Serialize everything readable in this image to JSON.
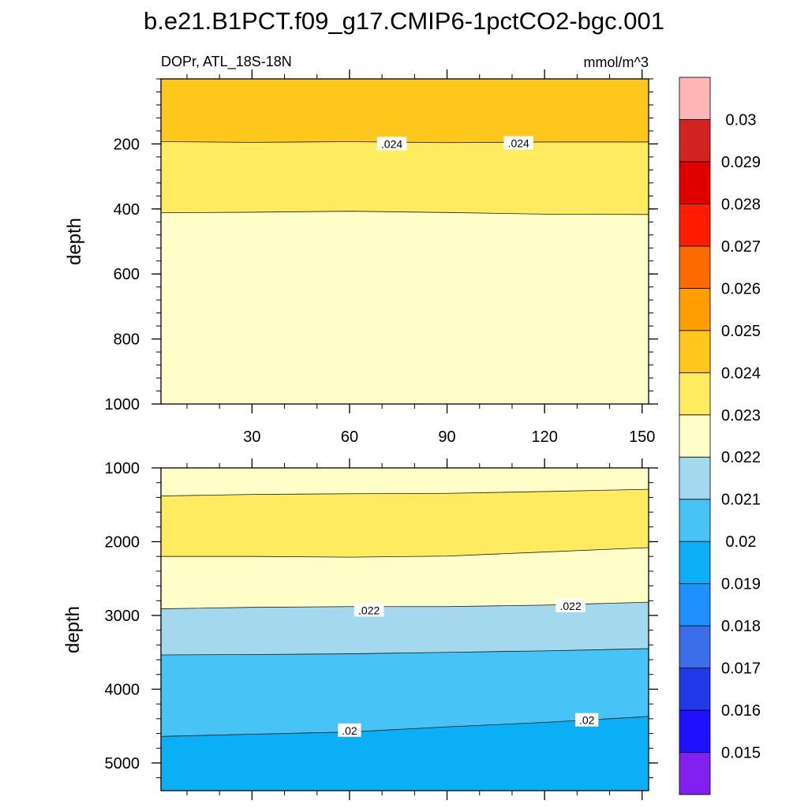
{
  "chart_data": {
    "type": "contour",
    "title": "b.e21.B1PCT.f09_g17.CMIP6-1pctCO2-bgc.001",
    "left_subtitle": "DOPr, ATL_18S-18N",
    "right_subtitle": "mmol/m^3",
    "xlabel": "",
    "ylabel": "depth",
    "x_ticks": [
      30,
      60,
      90,
      120,
      150
    ],
    "xlim": [
      2,
      152
    ],
    "levels": [
      0.015,
      0.016,
      0.017,
      0.018,
      0.019,
      0.02,
      0.021,
      0.022,
      0.023,
      0.024,
      0.025,
      0.026,
      0.027,
      0.028,
      0.029,
      0.03
    ],
    "level_labels": [
      "0.015",
      "0.016",
      "0.017",
      "0.018",
      "0.019",
      "0.02",
      "0.021",
      "0.022",
      "0.023",
      "0.024",
      "0.025",
      "0.026",
      "0.027",
      "0.028",
      "0.029",
      "0.03"
    ],
    "colors": [
      "#8220f0",
      "#1f10ff",
      "#2138e8",
      "#3c6de8",
      "#1e90ff",
      "#0aaff5",
      "#48c3f5",
      "#a3d8ef",
      "#fffdc8",
      "#ffeb60",
      "#ffc71c",
      "#ff9e00",
      "#ff6a00",
      "#ff1c00",
      "#e10000",
      "#d42323",
      "#ffb5b5"
    ],
    "panels": [
      {
        "name": "upper",
        "ylim": [
          0,
          1000
        ],
        "y_ticks": [
          200,
          400,
          600,
          800,
          1000
        ],
        "regions": [
          {
            "color_index": 10,
            "from": "top",
            "to": 0
          },
          {
            "color_index": 9,
            "from": 0,
            "to": 1
          },
          {
            "color_index": 8,
            "from": 1,
            "to": "bottom"
          }
        ],
        "contours": [
          {
            "level": 0.024,
            "x": [
              2,
              30,
              60,
              90,
              120,
              152
            ],
            "depth": [
              193,
              195,
              193,
              196,
              194,
              194
            ]
          },
          {
            "level": 0.023,
            "x": [
              2,
              30,
              60,
              90,
              120,
              152
            ],
            "depth": [
              412,
              410,
              407,
              411,
              416,
              417
            ]
          }
        ],
        "contour_labels": [
          {
            "text": ".024",
            "x": 73,
            "depth": 200
          },
          {
            "text": ".024",
            "x": 112,
            "depth": 198
          }
        ]
      },
      {
        "name": "lower",
        "ylim": [
          1000,
          5375
        ],
        "y_ticks": [
          1000,
          2000,
          3000,
          4000,
          5000
        ],
        "regions": [
          {
            "color_index": 8,
            "from": "top",
            "to": 0
          },
          {
            "color_index": 9,
            "from": 0,
            "to": 1
          },
          {
            "color_index": 8,
            "from": 1,
            "to": 2
          },
          {
            "color_index": 7,
            "from": 2,
            "to": 3
          },
          {
            "color_index": 6,
            "from": 3,
            "to": 4
          },
          {
            "color_index": 5,
            "from": 4,
            "to": "bottom"
          }
        ],
        "contours": [
          {
            "level": 0.023,
            "x": [
              2,
              30,
              60,
              90,
              120,
              152
            ],
            "depth": [
              1380,
              1360,
              1350,
              1345,
              1320,
              1290
            ]
          },
          {
            "level": 0.023,
            "x": [
              2,
              30,
              60,
              90,
              120,
              152
            ],
            "depth": [
              2200,
              2200,
              2210,
              2195,
              2140,
              2080
            ]
          },
          {
            "level": 0.022,
            "x": [
              2,
              30,
              60,
              90,
              120,
              152
            ],
            "depth": [
              2910,
              2890,
              2880,
              2880,
              2860,
              2820
            ]
          },
          {
            "level": 0.021,
            "x": [
              2,
              30,
              60,
              90,
              120,
              152
            ],
            "depth": [
              3535,
              3530,
              3520,
              3500,
              3480,
              3450
            ]
          },
          {
            "level": 0.02,
            "x": [
              2,
              30,
              60,
              90,
              120,
              152
            ],
            "depth": [
              4640,
              4610,
              4580,
              4510,
              4450,
              4370
            ]
          }
        ],
        "contour_labels": [
          {
            "text": ".022",
            "x": 66,
            "depth": 2930
          },
          {
            "text": ".022",
            "x": 128,
            "depth": 2870
          },
          {
            "text": ".02",
            "x": 60,
            "depth": 4560
          },
          {
            "text": ".02",
            "x": 133,
            "depth": 4420
          }
        ]
      }
    ]
  }
}
